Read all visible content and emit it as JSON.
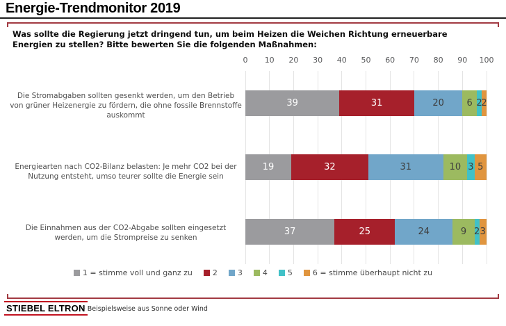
{
  "page": {
    "title": "Energie-Trendmonitor 2019",
    "question": "Was sollte die Regierung jetzt dringend tun, um beim Heizen die Weichen Richtung erneuerbare Energien zu stellen? Bitte bewerten Sie die folgenden Maßnahmen:",
    "logo_text": "STIEBEL ELTRON",
    "footnote": "* Beispielsweise aus Sonne oder Wind"
  },
  "colors": {
    "frame_border": "#a23a42",
    "title_rule": "#1f1f1f",
    "gridline": "#e4e4e4",
    "logo_red": "#c1121f"
  },
  "chart_data": {
    "type": "bar",
    "orientation": "horizontal-stacked",
    "title": "",
    "xlabel": "",
    "ylabel": "",
    "xlim": [
      0,
      100
    ],
    "ticks": [
      0,
      10,
      20,
      30,
      40,
      50,
      60,
      70,
      80,
      90,
      100
    ],
    "grid": true,
    "legend_position": "bottom",
    "categories": [
      "Die Stromabgaben sollten gesenkt werden, um den Betrieb von grüner Heizenergie zu fördern, die ohne fossile Brennstoffe auskommt",
      "Energiearten nach CO2-Bilanz belasten: Je mehr CO2 bei der Nutzung entsteht, umso teurer sollte die Energie sein",
      "Die Einnahmen aus der CO2-Abgabe sollten eingesetzt werden, um die Strompreise zu senken"
    ],
    "series": [
      {
        "name": "1 = stimme voll und ganz zu",
        "color": "#9b9b9e",
        "label_color": "#ffffff",
        "values": [
          39,
          19,
          37
        ]
      },
      {
        "name": "2",
        "color": "#a6202b",
        "label_color": "#ffffff",
        "values": [
          31,
          32,
          25
        ]
      },
      {
        "name": "3",
        "color": "#71a6c9",
        "label_color": "#3d3d3d",
        "values": [
          20,
          31,
          24
        ]
      },
      {
        "name": "4",
        "color": "#9cba60",
        "label_color": "#3d3d3d",
        "values": [
          6,
          10,
          9
        ]
      },
      {
        "name": "5",
        "color": "#41c1c7",
        "label_color": "#3d3d3d",
        "values": [
          2,
          3,
          2
        ]
      },
      {
        "name": "6 = stimme überhaupt nicht zu",
        "color": "#e0953f",
        "label_color": "#3d3d3d",
        "values": [
          2,
          5,
          3
        ]
      }
    ]
  }
}
